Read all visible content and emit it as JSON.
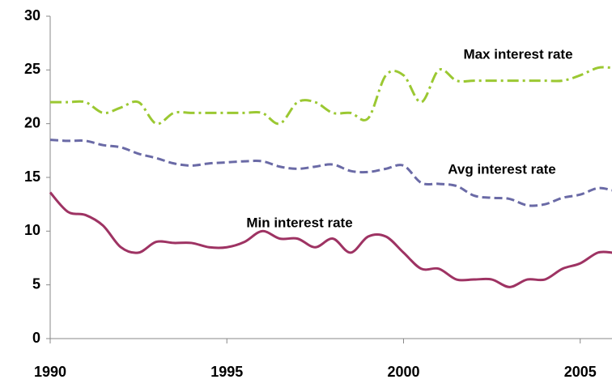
{
  "chart_data": {
    "type": "line",
    "x": [
      1990,
      1990.5,
      1991,
      1991.5,
      1992,
      1992.5,
      1993,
      1993.5,
      1994,
      1994.5,
      1995,
      1995.5,
      1996,
      1996.5,
      1997,
      1997.5,
      1998,
      1998.5,
      1999,
      1999.5,
      2000,
      2000.5,
      2001,
      2001.5,
      2002,
      2002.5,
      2003,
      2003.5,
      2004,
      2004.5,
      2005,
      2005.5,
      2005.9
    ],
    "series": [
      {
        "name": "Max interest rate",
        "color": "#9bc832",
        "dash": "dashdot",
        "values": [
          22,
          22,
          22,
          21,
          21.5,
          22,
          20,
          21,
          21,
          21,
          21,
          21,
          21,
          20,
          22,
          22,
          21,
          21,
          20.5,
          24.5,
          24.5,
          22,
          25,
          24,
          24,
          24,
          24,
          24,
          24,
          24,
          24.5,
          25.2,
          25.2
        ]
      },
      {
        "name": "Avg interest rate",
        "color": "#6a6aa6",
        "dash": "dashed",
        "values": [
          18.5,
          18.4,
          18.4,
          18,
          17.8,
          17.2,
          16.8,
          16.3,
          16.1,
          16.3,
          16.4,
          16.5,
          16.5,
          16,
          15.8,
          16,
          16.2,
          15.6,
          15.5,
          15.8,
          16.1,
          14.5,
          14.4,
          14.2,
          13.3,
          13.1,
          13,
          12.4,
          12.5,
          13.1,
          13.4,
          14,
          13.8
        ]
      },
      {
        "name": "Min interest rate",
        "color": "#9e3363",
        "dash": "solid",
        "values": [
          13.6,
          11.8,
          11.5,
          10.5,
          8.5,
          8,
          9,
          8.9,
          8.9,
          8.5,
          8.5,
          9,
          10,
          9.3,
          9.3,
          8.5,
          9.3,
          8,
          9.5,
          9.5,
          8,
          6.5,
          6.5,
          5.5,
          5.5,
          5.5,
          4.8,
          5.5,
          5.5,
          6.5,
          7,
          8,
          8
        ]
      }
    ],
    "xlim": [
      1990,
      2005.9
    ],
    "xticks": [
      1990,
      1995,
      2000,
      2005
    ],
    "ylim": [
      0,
      30
    ],
    "yticks": [
      0,
      5,
      10,
      15,
      20,
      25,
      30
    ]
  }
}
